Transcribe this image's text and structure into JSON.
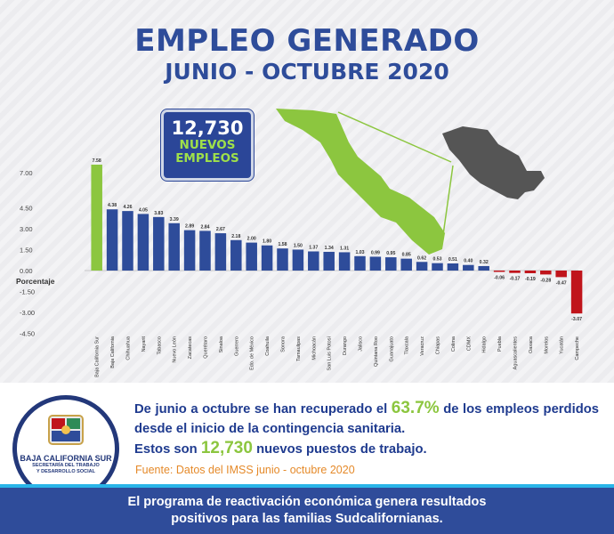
{
  "header": {
    "title": "EMPLEO GENERADO",
    "subtitle": "JUNIO - OCTUBRE 2020"
  },
  "badge": {
    "number": "12,730",
    "line1": "NUEVOS",
    "line2": "EMPLEOS"
  },
  "colors": {
    "title": "#2e4c9a",
    "positive": "#2e4c9a",
    "highlight": "#8cc63f",
    "negative": "#c0141b",
    "map_green": "#8cc63f",
    "map_gray": "#555555"
  },
  "chart_data": {
    "type": "bar",
    "ylabel": "Porcentaje",
    "ylim": [
      -4.5,
      7.5
    ],
    "yticks": [
      "7.00",
      "4.50",
      "3.00",
      "1.50",
      "0.00",
      "-1.50",
      "-3.00",
      "-4.50"
    ],
    "ytick_values": [
      7.0,
      4.5,
      3.0,
      1.5,
      0.0,
      -1.5,
      -3.0,
      -4.5
    ],
    "categories": [
      "Baja California Sur",
      "Baja California",
      "Chihuahua",
      "Nayarit",
      "Tabasco",
      "Nuevo León",
      "Zacatecas",
      "Querétaro",
      "Sinaloa",
      "Guerrero",
      "Edo. de México",
      "Coahuila",
      "Sonora",
      "Tamaulipas",
      "Michoacán",
      "San Luis Potosí",
      "Durango",
      "Jalisco",
      "Quintana Roo",
      "Guanajuato",
      "Tlaxcala",
      "Veracruz",
      "Chiapas",
      "Colima",
      "CDMX",
      "Hidalgo",
      "Puebla",
      "Aguascalientes",
      "Oaxaca",
      "Morelos",
      "Yucatán",
      "Campeche"
    ],
    "values": [
      7.58,
      4.38,
      4.26,
      4.05,
      3.83,
      3.39,
      2.89,
      2.84,
      2.67,
      2.18,
      2.0,
      1.8,
      1.58,
      1.5,
      1.37,
      1.34,
      1.31,
      1.03,
      0.99,
      0.95,
      0.85,
      0.62,
      0.53,
      0.51,
      0.4,
      0.32,
      -0.06,
      -0.17,
      -0.19,
      -0.28,
      -0.47,
      -3.07
    ],
    "value_labels": [
      "7.58",
      "4.38",
      "4.26",
      "4.05",
      "3.83",
      "3.39",
      "2.89",
      "2.84",
      "2.67",
      "2.18",
      "2.00",
      "1.80",
      "1.58",
      "1.50",
      "1.37",
      "1.34",
      "1.31",
      "1.03",
      "0.99",
      "0.95",
      "0.85",
      "0.62",
      "0.53",
      "0.51",
      "0.40",
      "0.32",
      "-0.06",
      "-0.17",
      "-0.19",
      "-0.28",
      "-0.47",
      "-3.07"
    ]
  },
  "summary": {
    "part1": "De junio a octubre se han recuperado el ",
    "highlight1": "63.7%",
    "part2": " de los empleos perdidos desde el inicio de la contingencia sanitaria.",
    "part3": "Estos son ",
    "highlight2": "12,730",
    "part4": " nuevos puestos de trabajo."
  },
  "source": "Fuente: Datos del IMSS junio - octubre 2020",
  "logo": {
    "name": "BAJA CALIFORNIA SUR",
    "line1": "SECRETARÍA DEL TRABAJO",
    "line2": "Y DESARROLLO SOCIAL"
  },
  "footer": {
    "line1": "El programa de reactivación económica genera resultados",
    "line2": "positivos para las familias Sudcalifornianas."
  }
}
